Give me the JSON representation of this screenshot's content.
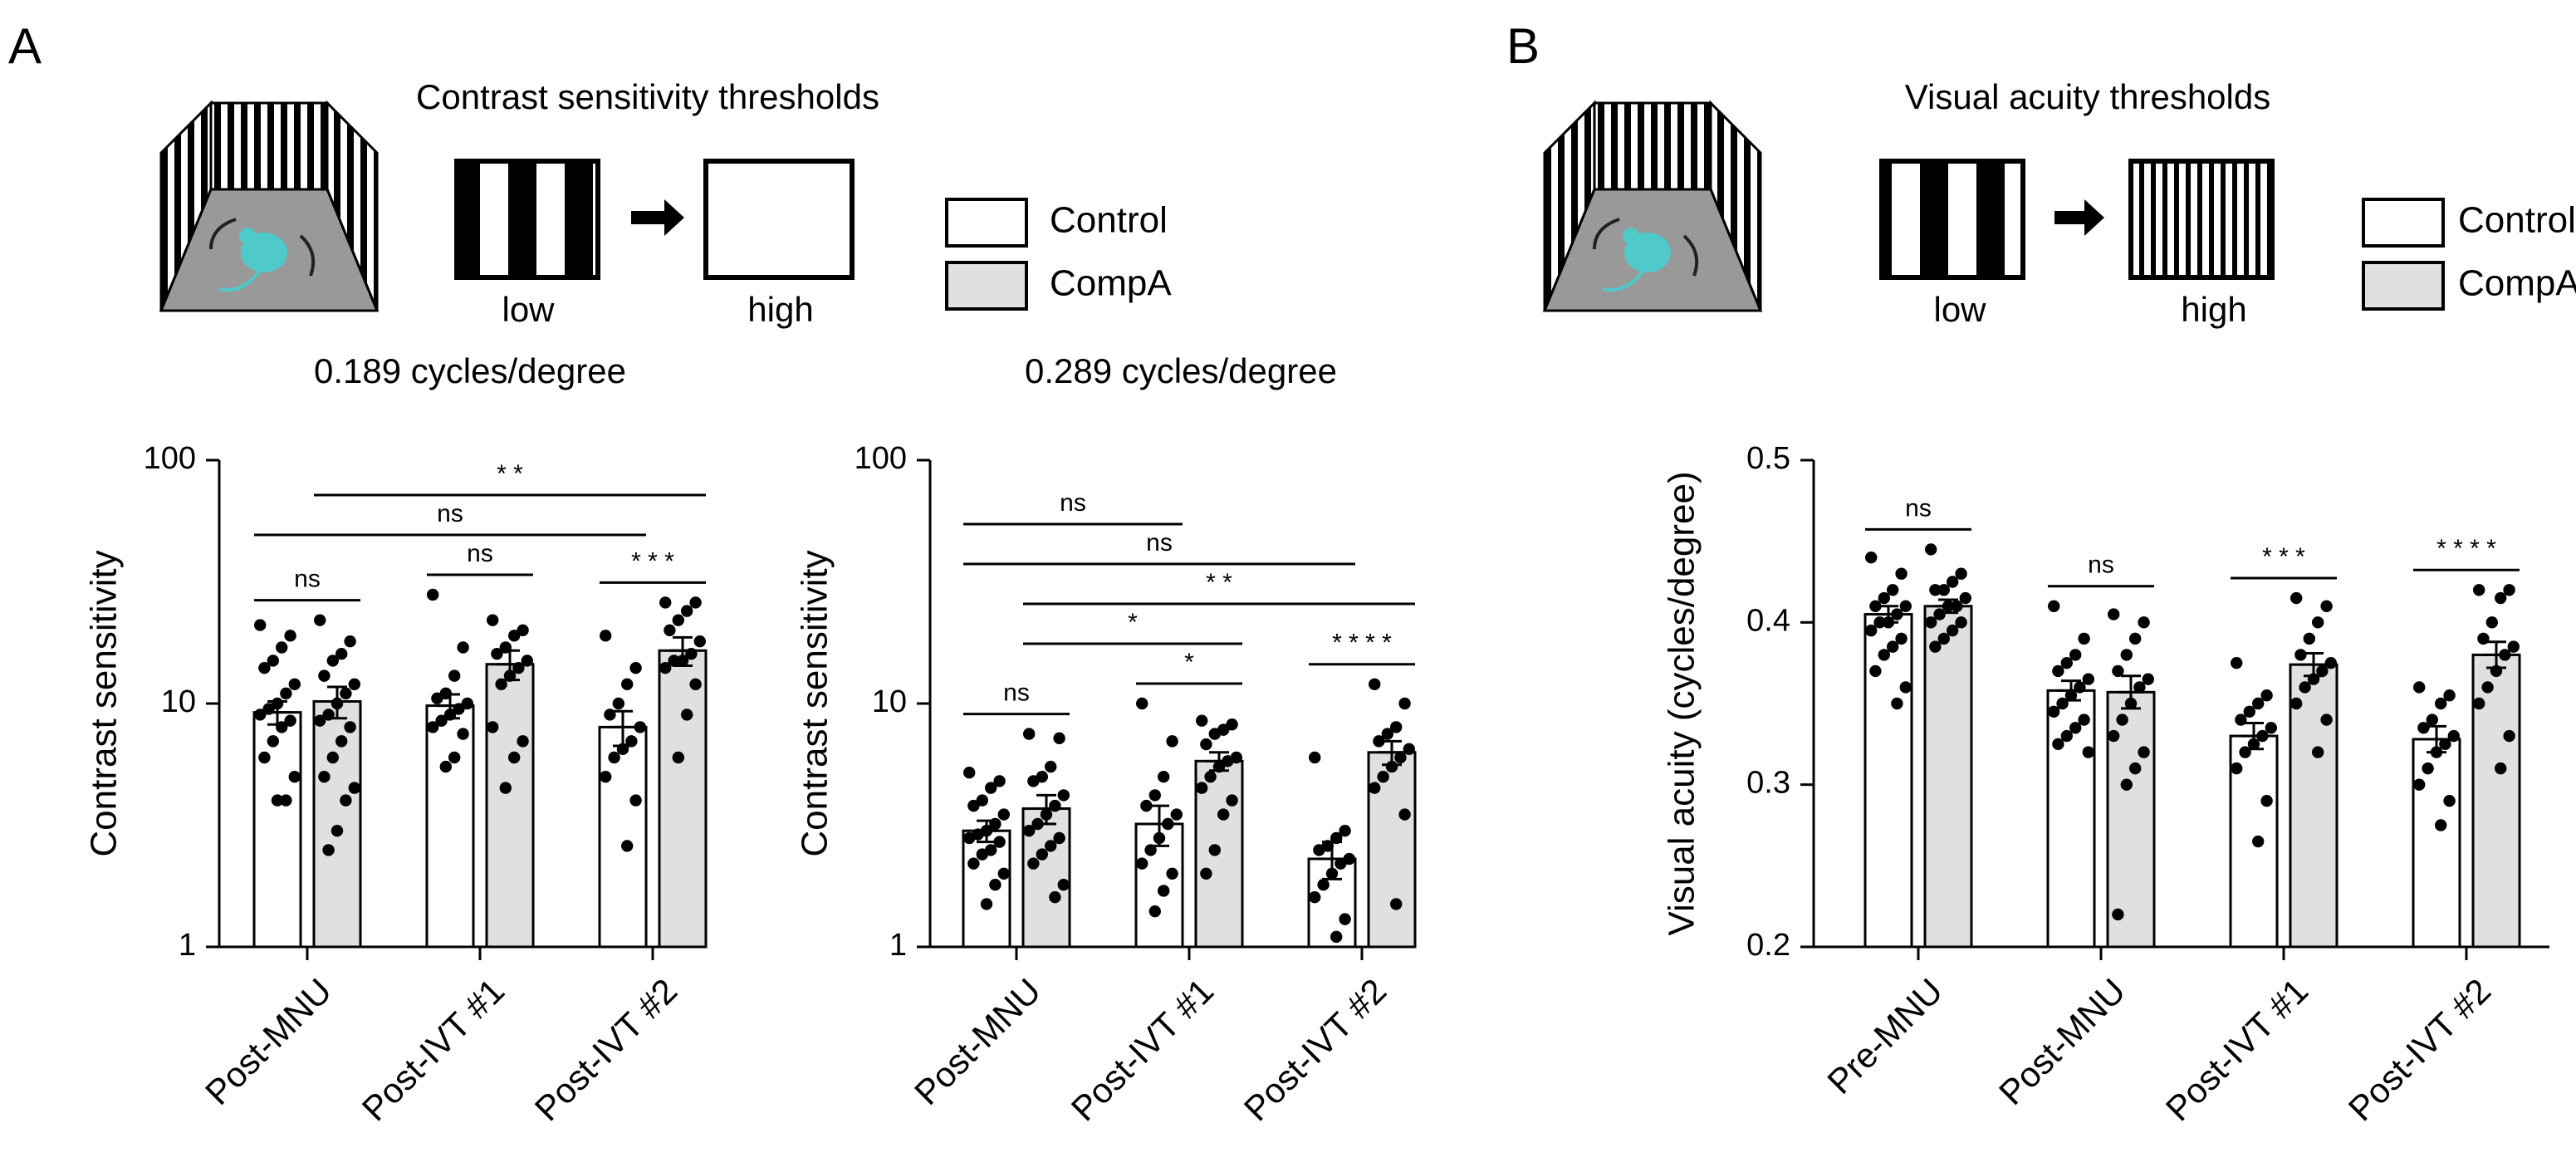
{
  "panels": [
    {
      "letter": "A",
      "heading": "Contrast sensitivity thresholds",
      "low": "low",
      "high": "high"
    },
    {
      "letter": "B",
      "heading": "Visual acuity thresholds",
      "low": "low",
      "high": "high"
    }
  ],
  "chart_data": [
    {
      "type": "bar",
      "title": "0.189 cycles/degree",
      "y_label": "Contrast sensitivity",
      "log_scale": true,
      "ylim": [
        1,
        100
      ],
      "yticks": [
        1,
        10,
        100
      ],
      "categories": [
        "Post-MNU",
        "Post-IVT #1",
        "Post-IVT #2"
      ],
      "series": [
        {
          "name": "Control",
          "color": "#ffffff",
          "values": [
            9.2,
            9.8,
            8
          ],
          "errors": [
            1,
            1.1,
            1.3
          ],
          "points": [
            [
              21,
              19,
              17,
              15,
              14,
              12,
              11,
              10,
              9.5,
              9,
              8.5,
              8,
              7,
              6,
              5,
              4,
              4
            ],
            [
              28,
              17,
              13,
              11,
              10.5,
              10,
              9.5,
              9,
              8.5,
              8,
              7.5,
              6,
              5.5
            ],
            [
              19,
              14,
              12,
              10,
              9,
              8,
              7,
              6.5,
              6,
              5,
              4,
              2.6
            ]
          ]
        },
        {
          "name": "CompA",
          "color": "#e0e0e0",
          "values": [
            10.2,
            14.5,
            16.5
          ],
          "errors": [
            1.5,
            2,
            2.2
          ],
          "points": [
            [
              22,
              18,
              16,
              15,
              13,
              12,
              11,
              10,
              9,
              8.5,
              8,
              7,
              6,
              5,
              4.5,
              4,
              3,
              2.5
            ],
            [
              22,
              20,
              19,
              17,
              16,
              15,
              14,
              13,
              12,
              8,
              7,
              6,
              4.5
            ],
            [
              26,
              26,
              24,
              22,
              20,
              18,
              16,
              15,
              15,
              14,
              12,
              9,
              6
            ]
          ]
        }
      ],
      "comparisons": [
        {
          "label": "ns",
          "groups": [
            [
              0,
              0
            ],
            [
              0,
              1
            ]
          ]
        },
        {
          "label": "ns",
          "groups": [
            [
              1,
              0
            ],
            [
              1,
              1
            ]
          ]
        },
        {
          "label": "* * *",
          "groups": [
            [
              2,
              0
            ],
            [
              2,
              1
            ]
          ]
        },
        {
          "label": "ns",
          "groups": [
            [
              0,
              0
            ],
            [
              2,
              0
            ]
          ]
        },
        {
          "label": "* *",
          "groups": [
            [
              0,
              1
            ],
            [
              2,
              1
            ]
          ]
        }
      ]
    },
    {
      "type": "bar",
      "title": "0.289 cycles/degree",
      "y_label": "Contrast sensitivity",
      "log_scale": true,
      "ylim": [
        1,
        100
      ],
      "yticks": [
        1,
        10,
        100
      ],
      "categories": [
        "Post-MNU",
        "Post-IVT #1",
        "Post-IVT #2"
      ],
      "series": [
        {
          "name": "Control",
          "color": "#ffffff",
          "values": [
            3,
            3.2,
            2.3
          ],
          "errors": [
            0.3,
            0.6,
            0.4
          ],
          "points": [
            [
              5.2,
              4.8,
              4.5,
              4,
              3.8,
              3.5,
              3.2,
              3,
              2.9,
              2.8,
              2.7,
              2.5,
              2.4,
              2.2,
              2,
              1.8,
              1.5
            ],
            [
              10,
              7,
              5,
              4.2,
              3.8,
              3.5,
              3.2,
              2.8,
              2.5,
              2.2,
              2,
              1.7,
              1.4
            ],
            [
              6,
              3,
              2.8,
              2.6,
              2.5,
              2.3,
              2.2,
              2,
              1.8,
              1.6,
              1.3,
              1.1
            ]
          ]
        },
        {
          "name": "CompA",
          "color": "#e0e0e0",
          "values": [
            3.7,
            5.8,
            6.3
          ],
          "errors": [
            0.5,
            0.5,
            0.7
          ],
          "points": [
            [
              7.5,
              7.2,
              5.5,
              5,
              4.8,
              4.2,
              3.8,
              3.5,
              3.2,
              3,
              2.8,
              2.6,
              2.4,
              2.2,
              1.8,
              1.6
            ],
            [
              8.5,
              8.2,
              7.8,
              7.5,
              6.8,
              6,
              5.8,
              5.5,
              5,
              4.5,
              4,
              3.5,
              2.5,
              2
            ],
            [
              12,
              10,
              8,
              7.5,
              7,
              6.5,
              6,
              5.5,
              5,
              4.5,
              3.5,
              1.5
            ]
          ]
        }
      ],
      "comparisons": [
        {
          "label": "ns",
          "groups": [
            [
              0,
              0
            ],
            [
              0,
              1
            ]
          ]
        },
        {
          "label": "*",
          "groups": [
            [
              1,
              0
            ],
            [
              1,
              1
            ]
          ]
        },
        {
          "label": "* * * *",
          "groups": [
            [
              2,
              0
            ],
            [
              2,
              1
            ]
          ]
        },
        {
          "label": "*",
          "groups": [
            [
              0,
              1
            ],
            [
              1,
              1
            ]
          ]
        },
        {
          "label": "* *",
          "groups": [
            [
              0,
              1
            ],
            [
              2,
              1
            ]
          ]
        },
        {
          "label": "ns",
          "groups": [
            [
              0,
              0
            ],
            [
              2,
              0
            ]
          ]
        },
        {
          "label": "ns",
          "groups": [
            [
              0,
              0
            ],
            [
              1,
              0
            ]
          ]
        }
      ]
    },
    {
      "type": "bar",
      "y_label": "Visual acuity (cycles/degree)",
      "log_scale": false,
      "ylim": [
        0.2,
        0.5
      ],
      "yticks": [
        0.2,
        0.3,
        0.4,
        0.5
      ],
      "categories": [
        "Pre-MNU",
        "Post-MNU",
        "Post-IVT #1",
        "Post-IVT #2"
      ],
      "series": [
        {
          "name": "Control",
          "color": "#ffffff",
          "values": [
            0.405,
            0.358,
            0.33,
            0.328
          ],
          "errors": [
            0.005,
            0.006,
            0.008,
            0.008
          ],
          "points": [
            [
              0.44,
              0.43,
              0.42,
              0.415,
              0.41,
              0.41,
              0.405,
              0.4,
              0.4,
              0.395,
              0.39,
              0.385,
              0.38,
              0.37,
              0.36,
              0.35
            ],
            [
              0.41,
              0.39,
              0.38,
              0.375,
              0.37,
              0.365,
              0.36,
              0.355,
              0.35,
              0.345,
              0.34,
              0.335,
              0.33,
              0.325,
              0.32
            ],
            [
              0.375,
              0.355,
              0.35,
              0.345,
              0.34,
              0.335,
              0.33,
              0.325,
              0.32,
              0.31,
              0.29,
              0.265
            ],
            [
              0.36,
              0.355,
              0.35,
              0.34,
              0.335,
              0.33,
              0.325,
              0.32,
              0.31,
              0.3,
              0.29,
              0.275
            ]
          ]
        },
        {
          "name": "CompA",
          "color": "#e0e0e0",
          "values": [
            0.41,
            0.357,
            0.374,
            0.38
          ],
          "errors": [
            0.004,
            0.01,
            0.007,
            0.008
          ],
          "points": [
            [
              0.445,
              0.43,
              0.425,
              0.42,
              0.42,
              0.415,
              0.41,
              0.41,
              0.405,
              0.4,
              0.4,
              0.395,
              0.39,
              0.385
            ],
            [
              0.405,
              0.4,
              0.39,
              0.38,
              0.37,
              0.365,
              0.36,
              0.35,
              0.34,
              0.33,
              0.32,
              0.31,
              0.3,
              0.22
            ],
            [
              0.415,
              0.41,
              0.4,
              0.39,
              0.38,
              0.375,
              0.37,
              0.365,
              0.36,
              0.35,
              0.34,
              0.32
            ],
            [
              0.42,
              0.42,
              0.415,
              0.4,
              0.39,
              0.385,
              0.38,
              0.37,
              0.36,
              0.35,
              0.33,
              0.31
            ]
          ]
        }
      ],
      "comparisons": [
        {
          "label": "ns",
          "groups": [
            [
              0,
              0
            ],
            [
              0,
              1
            ]
          ]
        },
        {
          "label": "ns",
          "groups": [
            [
              1,
              0
            ],
            [
              1,
              1
            ]
          ]
        },
        {
          "label": "* * *",
          "groups": [
            [
              2,
              0
            ],
            [
              2,
              1
            ]
          ]
        },
        {
          "label": "* * * *",
          "groups": [
            [
              3,
              0
            ],
            [
              3,
              1
            ]
          ]
        }
      ]
    }
  ]
}
